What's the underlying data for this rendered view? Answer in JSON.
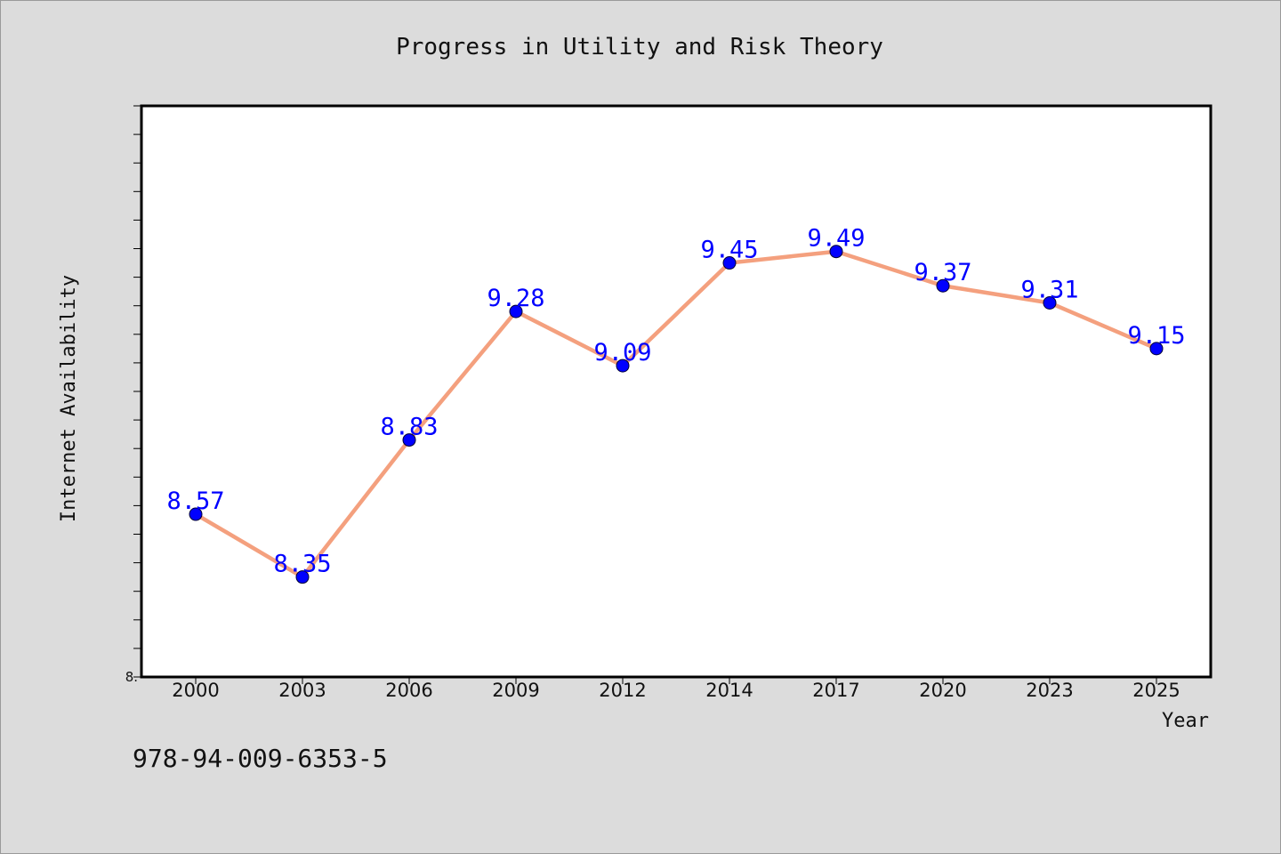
{
  "chart_data": {
    "type": "line",
    "title": "Progress in Utility and Risk Theory",
    "xlabel": "Year",
    "ylabel": "Internet Availability",
    "categories": [
      "2000",
      "2003",
      "2006",
      "2009",
      "2012",
      "2014",
      "2017",
      "2020",
      "2023",
      "2025"
    ],
    "series": [
      {
        "values": [
          8.57,
          8.35,
          8.83,
          9.28,
          9.09,
          9.45,
          9.49,
          9.37,
          9.31,
          9.15
        ],
        "data_labels": [
          "8.57",
          "8.35",
          "8.83",
          "9.28",
          "9.09",
          "9.45",
          "9.49",
          "9.37",
          "9.31",
          "9.15"
        ]
      }
    ],
    "ylim": [
      8.0,
      10.0
    ],
    "ytick_labels": [
      {
        "value": 8.0,
        "label": "8."
      }
    ],
    "grid": false,
    "legend": "none",
    "colors": {
      "line": "#f4a07e",
      "marker": "#0000ff",
      "data_label": "#0000ff",
      "plot_background": "#ffffff",
      "figure_background": "#dcdcdc"
    }
  },
  "footnote": "978-94-009-6353-5"
}
